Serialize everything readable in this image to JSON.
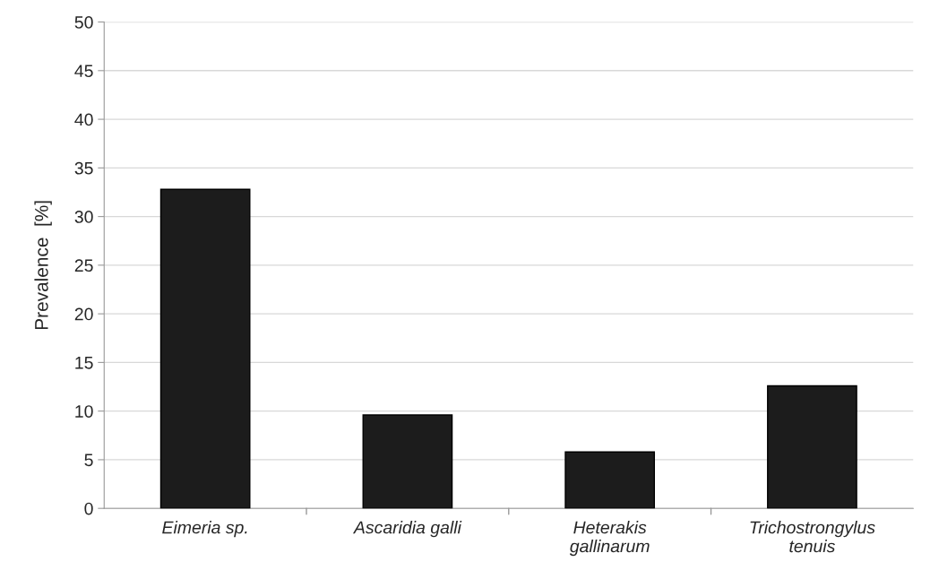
{
  "chart_data": {
    "type": "bar",
    "ylabel": "Prevalence  [%]",
    "categories": [
      "Eimeria sp.",
      "Ascaridia galli",
      "Heterakis\ngallinarum",
      "Trichostrongylus\ntenuis"
    ],
    "values": [
      32.8,
      9.6,
      5.8,
      12.6
    ],
    "color": "#1c1c1c",
    "ylim": [
      0,
      50
    ],
    "yticks": [
      0,
      5,
      10,
      15,
      20,
      25,
      30,
      35,
      40,
      45,
      50
    ],
    "grid": "y",
    "legend": false
  }
}
